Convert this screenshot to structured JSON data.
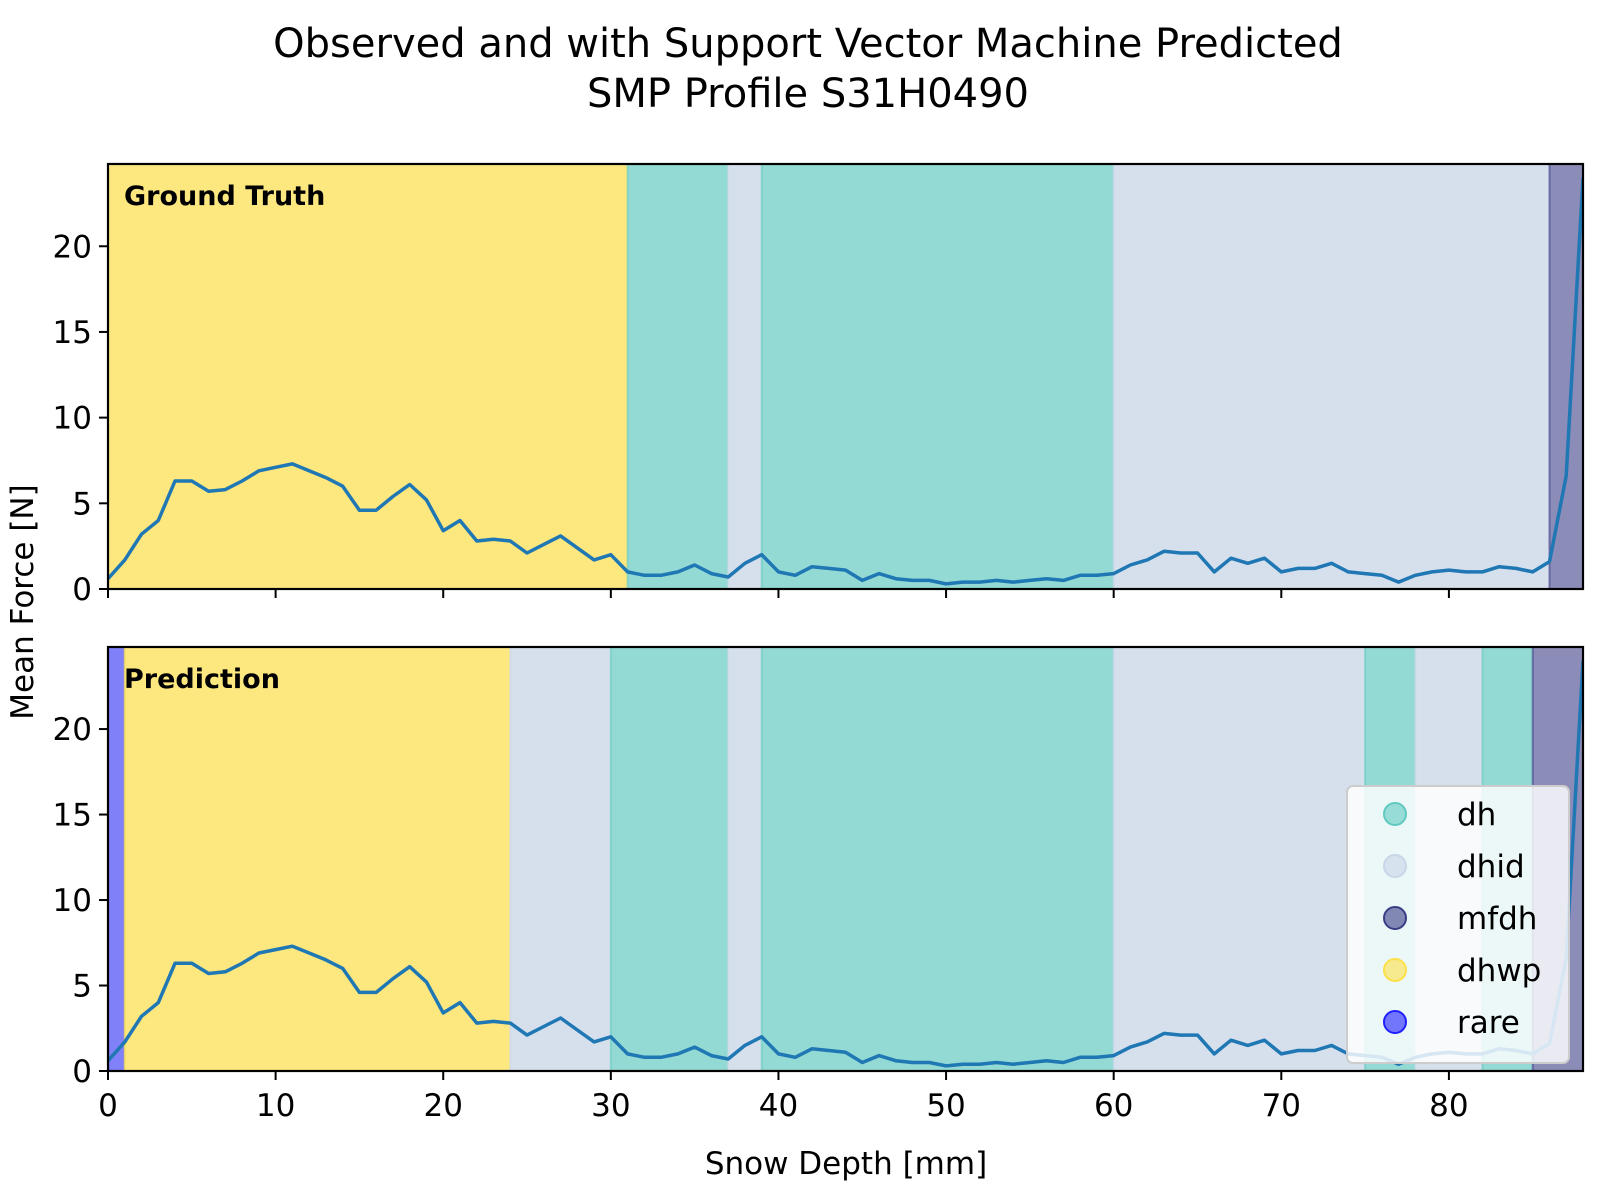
{
  "chart_data": {
    "type": "area",
    "title": "Observed and with Support Vector Machine Predicted",
    "subtitle": "SMP Profile S31H0490",
    "xlabel": "Snow Depth [mm]",
    "ylabel": "Mean Force [N]",
    "xlim": [
      0,
      88
    ],
    "ylim": [
      0,
      24.8
    ],
    "x_ticks": [
      0,
      10,
      20,
      30,
      40,
      50,
      60,
      70,
      80
    ],
    "y_ticks": [
      0,
      5,
      10,
      15,
      20
    ],
    "grid": false,
    "legend": {
      "placement": "lower-right",
      "entries": [
        {
          "label": "dh",
          "color": "#5fc9c0"
        },
        {
          "label": "dhid",
          "color": "#c8d6e8"
        },
        {
          "label": "mfdh",
          "color": "#3b3d87"
        },
        {
          "label": "dhwp",
          "color": "#fde047"
        },
        {
          "label": "rare",
          "color": "#2020ff"
        }
      ]
    },
    "colors": {
      "dh": "#93d9d4",
      "dhid": "#d6e0ec",
      "mfdh": "#8c8cb8",
      "dhwp": "#fde880",
      "rare": "#8080f8",
      "line": "#1f77b4"
    },
    "series": [
      {
        "x": [
          0,
          1,
          2,
          3,
          4,
          5,
          6,
          7,
          8,
          9,
          10,
          11,
          12,
          13,
          14,
          15,
          16,
          17,
          18,
          19,
          20,
          21,
          22,
          23,
          24,
          25,
          26,
          27,
          28,
          29,
          30,
          31,
          32,
          33,
          34,
          35,
          36,
          37,
          38,
          39,
          40,
          41,
          42,
          43,
          44,
          45,
          46,
          47,
          48,
          49,
          50,
          51,
          52,
          53,
          54,
          55,
          56,
          57,
          58,
          59,
          60,
          61,
          62,
          63,
          64,
          65,
          66,
          67,
          68,
          69,
          70,
          71,
          72,
          73,
          74,
          75,
          76,
          77,
          78,
          79,
          80,
          81,
          82,
          83,
          84,
          85,
          86,
          87,
          88
        ],
        "values": [
          0.6,
          1.7,
          3.2,
          4.0,
          6.3,
          6.3,
          5.7,
          5.8,
          6.3,
          6.9,
          7.1,
          7.3,
          6.9,
          6.5,
          6.0,
          4.6,
          4.6,
          5.4,
          6.1,
          5.2,
          3.4,
          4.0,
          2.8,
          2.9,
          2.8,
          2.1,
          2.6,
          3.1,
          2.4,
          1.7,
          2.0,
          1.0,
          0.8,
          0.8,
          1.0,
          1.4,
          0.9,
          0.7,
          1.5,
          2.0,
          1.0,
          0.8,
          1.3,
          1.2,
          1.1,
          0.5,
          0.9,
          0.6,
          0.5,
          0.5,
          0.3,
          0.4,
          0.4,
          0.5,
          0.4,
          0.5,
          0.6,
          0.5,
          0.8,
          0.8,
          0.9,
          1.4,
          1.7,
          2.2,
          2.1,
          2.1,
          1.0,
          1.8,
          1.5,
          1.8,
          1.0,
          1.2,
          1.2,
          1.5,
          1.0,
          0.9,
          0.8,
          0.4,
          0.8,
          1.0,
          1.1,
          1.0,
          1.0,
          1.3,
          1.2,
          1.0,
          1.6,
          6.6,
          24.0
        ]
      }
    ],
    "panels": [
      {
        "label": "Ground Truth",
        "segments": [
          {
            "start": 0,
            "end": 31,
            "class": "dhwp"
          },
          {
            "start": 31,
            "end": 37,
            "class": "dh"
          },
          {
            "start": 37,
            "end": 39,
            "class": "dhid"
          },
          {
            "start": 39,
            "end": 60,
            "class": "dh"
          },
          {
            "start": 60,
            "end": 86,
            "class": "dhid"
          },
          {
            "start": 86,
            "end": 88,
            "class": "mfdh"
          }
        ]
      },
      {
        "label": "Prediction",
        "segments": [
          {
            "start": 0,
            "end": 1,
            "class": "rare"
          },
          {
            "start": 1,
            "end": 24,
            "class": "dhwp"
          },
          {
            "start": 24,
            "end": 30,
            "class": "dhid"
          },
          {
            "start": 30,
            "end": 37,
            "class": "dh"
          },
          {
            "start": 37,
            "end": 39,
            "class": "dhid"
          },
          {
            "start": 39,
            "end": 60,
            "class": "dh"
          },
          {
            "start": 60,
            "end": 75,
            "class": "dhid"
          },
          {
            "start": 75,
            "end": 78,
            "class": "dh"
          },
          {
            "start": 78,
            "end": 82,
            "class": "dhid"
          },
          {
            "start": 82,
            "end": 85,
            "class": "dh"
          },
          {
            "start": 85,
            "end": 88,
            "class": "mfdh"
          }
        ]
      }
    ]
  }
}
